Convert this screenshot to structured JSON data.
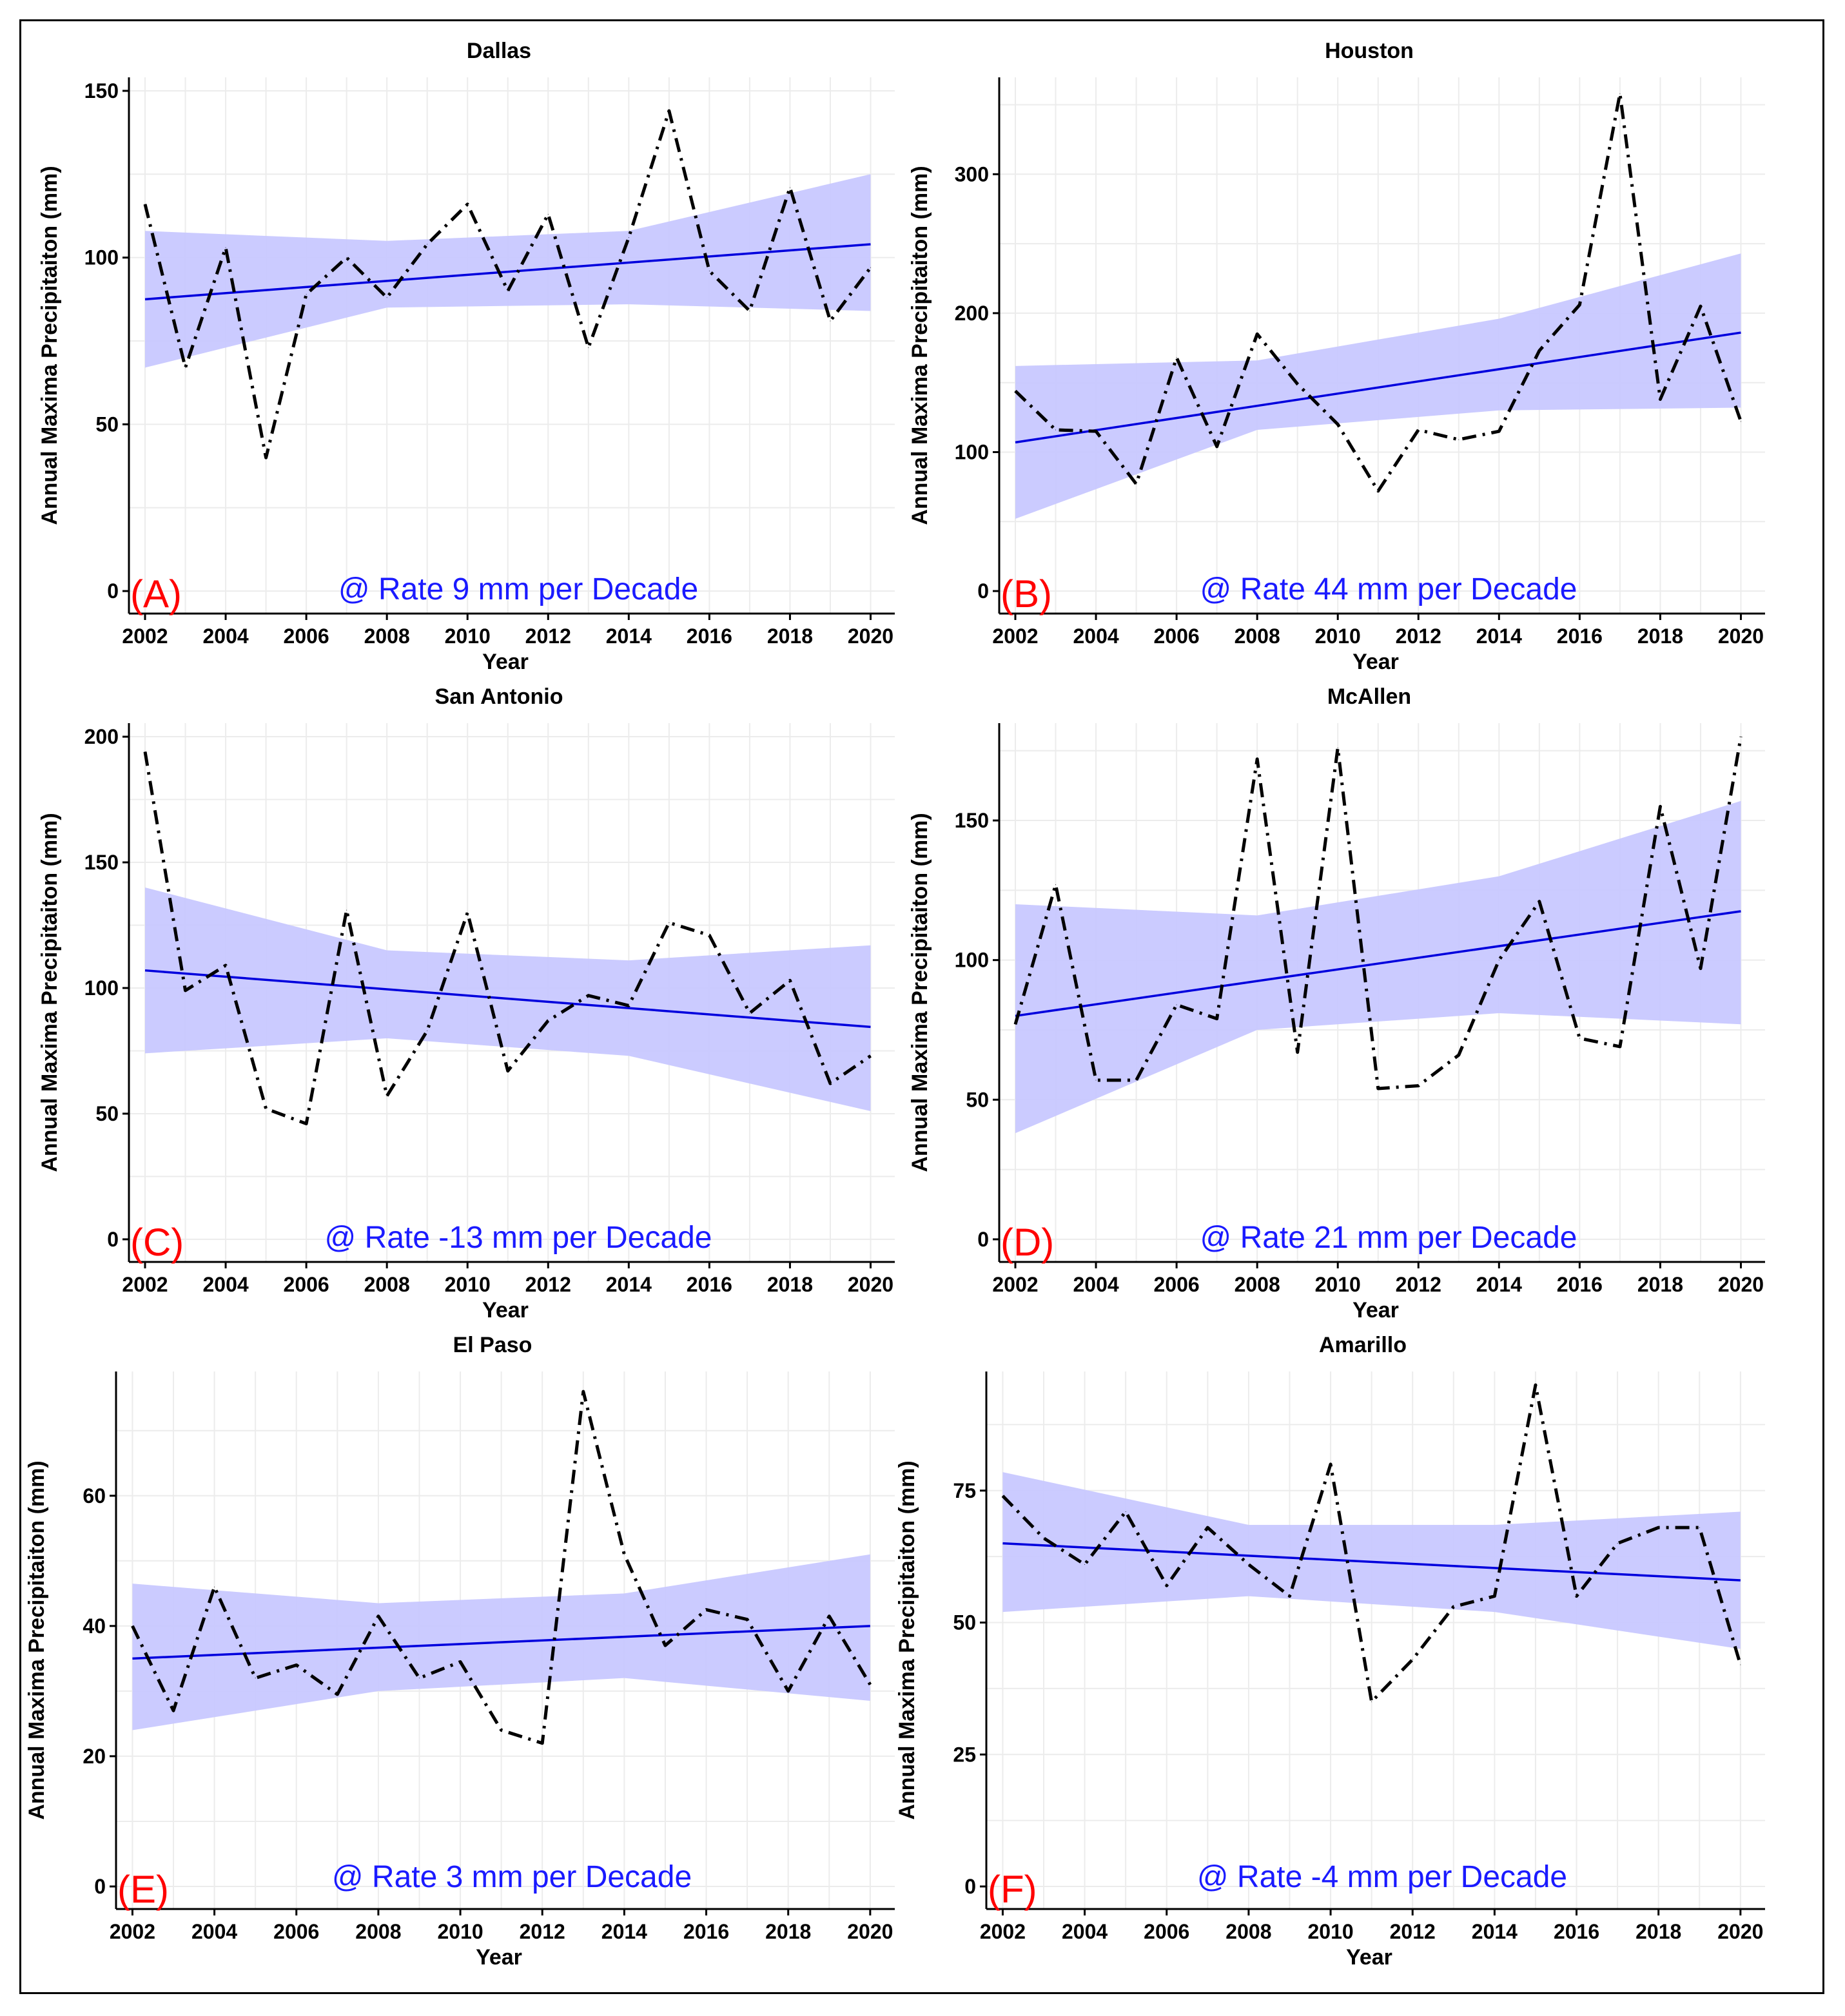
{
  "figure": {
    "x_label": "Year",
    "y_label": "Annual Maxima Precipitaiton (mm)",
    "colors": {
      "observed": "#000000",
      "trend": "#0000dd",
      "band": "#c8c8ff",
      "rate": "#1a1aff",
      "letter": "#ff0000"
    }
  },
  "chart_data": [
    {
      "type": "line",
      "title": "Dallas",
      "panel": "(A)",
      "rate_label": "@ Rate 9 mm per Decade",
      "xlabel": "Year",
      "ylabel": "Annual Maxima Precipitaiton (mm)",
      "x": [
        2002,
        2003,
        2004,
        2005,
        2006,
        2007,
        2008,
        2009,
        2010,
        2011,
        2012,
        2013,
        2014,
        2015,
        2016,
        2017,
        2018,
        2019,
        2020
      ],
      "y": [
        116,
        67,
        103,
        40,
        89,
        100,
        88,
        104,
        116,
        90,
        113,
        73,
        106,
        144,
        96,
        84,
        121,
        81,
        97
      ],
      "trend": [
        87.5,
        104
      ],
      "band_lower": [
        67,
        85,
        86,
        84
      ],
      "band_upper": [
        108,
        105,
        108,
        125
      ],
      "ylim": [
        0,
        150
      ],
      "yticks": [
        0,
        50,
        100,
        150
      ],
      "xticks": [
        2002,
        2004,
        2006,
        2008,
        2010,
        2012,
        2014,
        2016,
        2018,
        2020
      ]
    },
    {
      "type": "line",
      "title": "Houston",
      "panel": "(B)",
      "rate_label": "@ Rate 44 mm per Decade",
      "xlabel": "Year",
      "ylabel": "Annual Maxima Precipitaiton (mm)",
      "x": [
        2002,
        2003,
        2004,
        2005,
        2006,
        2007,
        2008,
        2009,
        2010,
        2011,
        2012,
        2013,
        2014,
        2015,
        2016,
        2017,
        2018,
        2019,
        2020
      ],
      "y": [
        144,
        116,
        115,
        77,
        168,
        104,
        185,
        149,
        120,
        72,
        116,
        109,
        115,
        173,
        206,
        358,
        138,
        205,
        122
      ],
      "trend": [
        107,
        186
      ],
      "band_lower": [
        52,
        116,
        130,
        132
      ],
      "band_upper": [
        162,
        166,
        196,
        243
      ],
      "ylim": [
        0,
        360
      ],
      "yticks": [
        0,
        100,
        200,
        300
      ],
      "xticks": [
        2002,
        2004,
        2006,
        2008,
        2010,
        2012,
        2014,
        2016,
        2018,
        2020
      ]
    },
    {
      "type": "line",
      "title": "San Antonio",
      "panel": "(C)",
      "rate_label": "@ Rate -13 mm per Decade",
      "xlabel": "Year",
      "ylabel": "Annual Maxima Precipitaiton (mm)",
      "x": [
        2002,
        2003,
        2004,
        2005,
        2006,
        2007,
        2008,
        2009,
        2010,
        2011,
        2012,
        2013,
        2014,
        2015,
        2016,
        2017,
        2018,
        2019,
        2020
      ],
      "y": [
        194,
        99,
        109,
        52,
        46,
        131,
        57,
        83,
        130,
        67,
        87,
        97,
        93,
        126,
        121,
        90,
        103,
        62,
        73
      ],
      "trend": [
        107,
        84.5
      ],
      "band_lower": [
        74,
        80,
        73,
        51
      ],
      "band_upper": [
        140,
        115,
        111,
        117
      ],
      "ylim": [
        0,
        200
      ],
      "yticks": [
        0,
        50,
        100,
        150,
        200
      ],
      "xticks": [
        2002,
        2004,
        2006,
        2008,
        2010,
        2012,
        2014,
        2016,
        2018,
        2020
      ]
    },
    {
      "type": "line",
      "title": "McAllen",
      "panel": "(D)",
      "rate_label": "@ Rate 21 mm per Decade",
      "xlabel": "Year",
      "ylabel": "Annual Maxima Precipitaiton (mm)",
      "x": [
        2002,
        2003,
        2004,
        2005,
        2006,
        2007,
        2008,
        2009,
        2010,
        2011,
        2012,
        2013,
        2014,
        2015,
        2016,
        2017,
        2018,
        2019,
        2020
      ],
      "y": [
        77,
        127,
        57,
        57,
        84,
        79,
        172,
        67,
        176,
        54,
        55,
        66,
        100,
        121,
        72,
        69,
        155,
        97,
        180
      ],
      "trend": [
        80,
        117.5
      ],
      "band_lower": [
        38,
        75,
        81,
        77
      ],
      "band_upper": [
        120,
        116,
        130,
        157
      ],
      "ylim": [
        0,
        180
      ],
      "yticks": [
        0,
        50,
        100,
        150
      ],
      "xticks": [
        2002,
        2004,
        2006,
        2008,
        2010,
        2012,
        2014,
        2016,
        2018,
        2020
      ]
    },
    {
      "type": "line",
      "title": "El Paso",
      "panel": "(E)",
      "rate_label": "@ Rate 3 mm per Decade",
      "xlabel": "Year",
      "ylabel": "Annual Maxima Precipitaiton (mm)",
      "x": [
        2002,
        2003,
        2004,
        2005,
        2006,
        2007,
        2008,
        2009,
        2010,
        2011,
        2012,
        2013,
        2014,
        2015,
        2016,
        2017,
        2018,
        2019,
        2020
      ],
      "y": [
        40,
        27,
        46,
        32,
        34,
        29.5,
        41.5,
        32,
        34.5,
        24,
        22,
        76,
        51,
        37,
        42.5,
        41,
        30,
        41.5,
        31
      ],
      "trend": [
        35,
        40
      ],
      "band_lower": [
        24,
        30,
        32,
        28.5
      ],
      "band_upper": [
        46.5,
        43.5,
        45,
        51
      ],
      "ylim": [
        0,
        77
      ],
      "yticks": [
        0,
        20,
        40,
        60
      ],
      "xticks": [
        2002,
        2004,
        2006,
        2008,
        2010,
        2012,
        2014,
        2016,
        2018,
        2020
      ]
    },
    {
      "type": "line",
      "title": "Amarillo",
      "panel": "(F)",
      "rate_label": "@ Rate -4 mm per Decade",
      "xlabel": "Year",
      "ylabel": "Annual Maxima Precipitaiton (mm)",
      "x": [
        2002,
        2003,
        2004,
        2005,
        2006,
        2007,
        2008,
        2009,
        2010,
        2011,
        2012,
        2013,
        2014,
        2015,
        2016,
        2017,
        2018,
        2019,
        2020
      ],
      "y": [
        74,
        66,
        61,
        71,
        57,
        68,
        61,
        55,
        80,
        35,
        43,
        53,
        55,
        95,
        55,
        65,
        68,
        68,
        42
      ],
      "trend": [
        65,
        58
      ],
      "band_lower": [
        52,
        55,
        52,
        45
      ],
      "band_upper": [
        78.5,
        68.5,
        68.5,
        71
      ],
      "ylim": [
        0,
        95
      ],
      "yticks": [
        0,
        25,
        50,
        75
      ],
      "xticks": [
        2002,
        2004,
        2006,
        2008,
        2010,
        2012,
        2014,
        2016,
        2018,
        2020
      ]
    }
  ]
}
